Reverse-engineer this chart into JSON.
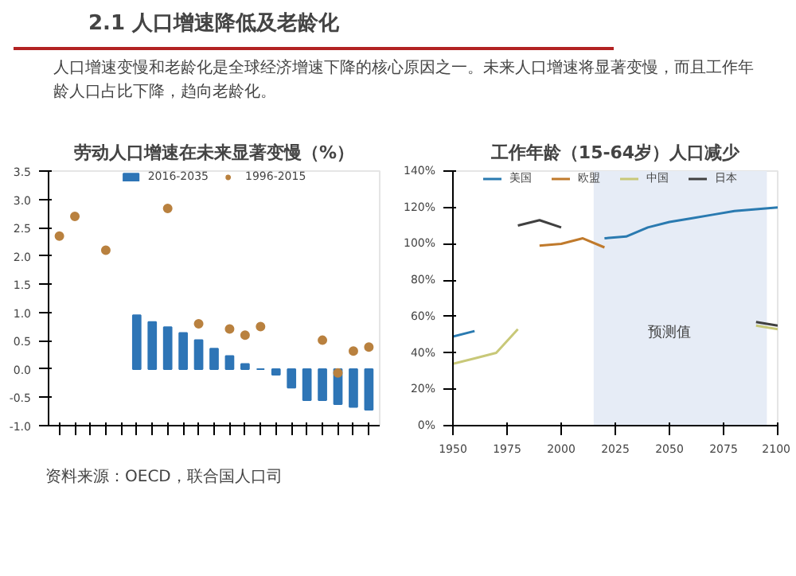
{
  "chart_data": [
    {
      "type": "other",
      "title": "2.1 人口增速降低及老龄化",
      "subtitle": "人口增速变慢和老龄化是全球经济增速下降的核心原因之一。未来人口增速将显著变慢，而且工作年龄人口占比下降，趋向老龄化。",
      "annotations": [
        "资料来源：OECD，联合国人口司"
      ]
    },
    {
      "type": "bar",
      "title": "劳动人口增速在未来显著变慢（%）",
      "categories": [
        null,
        null,
        null,
        null,
        null,
        null,
        null,
        null,
        null,
        null,
        null,
        null,
        null,
        null,
        null,
        null,
        null,
        null,
        null,
        null,
        null
      ],
      "series": [
        {
          "name": "2016-2035",
          "color": "#2e75b6",
          "values": [
            null,
            null,
            null,
            null,
            null,
            0.95,
            0.83,
            0.74,
            0.64,
            0.51,
            0.36,
            0.23,
            0.09,
            0.0,
            -0.1,
            -0.33,
            -0.55,
            -0.55,
            -0.62,
            -0.67,
            -0.72
          ]
        },
        {
          "name": "1996-2015",
          "type": "scatter",
          "marker": "circle",
          "color": "#b9813f",
          "values": [
            2.35,
            2.7,
            null,
            2.1,
            null,
            null,
            null,
            2.84,
            null,
            0.8,
            null,
            0.71,
            0.6,
            0.75,
            null,
            null,
            null,
            0.51,
            -0.07,
            0.32,
            0.39
          ]
        }
      ],
      "ylim": [
        -1.0,
        3.5
      ],
      "yticks": [
        {
          "value": -1.0,
          "label": "-1.0"
        },
        {
          "value": -0.5,
          "label": "-0.5"
        },
        {
          "value": 0,
          "label": "0.0"
        },
        {
          "value": 0.5,
          "label": "0.5"
        },
        {
          "value": 1.0,
          "label": "1.0"
        },
        {
          "value": 1.5,
          "label": "1.5"
        },
        {
          "value": 2.0,
          "label": "2.0"
        },
        {
          "value": 2.5,
          "label": "2.5"
        },
        {
          "value": 3.0,
          "label": "3.0"
        },
        {
          "value": 3.5,
          "label": "3.5"
        }
      ],
      "tick_labels": "y",
      "legend": "top",
      "grid": false
    },
    {
      "type": "line",
      "title": "工作年龄（15-64岁）人口减少",
      "x": [
        1950,
        1960,
        1970,
        1980,
        1990,
        2000,
        2010,
        2020,
        2030,
        2040,
        2050,
        2060,
        2070,
        2080,
        2090,
        2100
      ],
      "series": [
        {
          "name": "美国",
          "color": "#2a7ab0",
          "values": [
            49,
            52,
            null,
            null,
            null,
            null,
            null,
            103,
            104,
            109,
            112,
            114,
            116,
            118,
            119,
            120
          ]
        },
        {
          "name": "欧盟",
          "color": "#c07a2c",
          "values": [
            null,
            null,
            null,
            null,
            99,
            100,
            103,
            98,
            null,
            null,
            null,
            null,
            null,
            null,
            null,
            null
          ]
        },
        {
          "name": "中国",
          "color": "#c8c878",
          "values": [
            34,
            37,
            40,
            53,
            null,
            null,
            null,
            null,
            null,
            null,
            null,
            null,
            null,
            null,
            55,
            53
          ]
        },
        {
          "name": "日本",
          "color": "#404040",
          "values": [
            null,
            null,
            null,
            110,
            113,
            109,
            null,
            null,
            null,
            null,
            null,
            null,
            null,
            null,
            57,
            55
          ]
        }
      ],
      "xlim": [
        1950,
        2100
      ],
      "xticks": [
        1950,
        1975,
        2000,
        2025,
        2050,
        2075,
        2100
      ],
      "ylim": [
        0,
        140
      ],
      "yticks": [
        {
          "value": 0,
          "label": "0%"
        },
        {
          "value": 20,
          "label": "20%"
        },
        {
          "value": 40,
          "label": "40%"
        },
        {
          "value": 60,
          "label": "60%"
        },
        {
          "value": 80,
          "label": "80%"
        },
        {
          "value": 100,
          "label": "100%"
        },
        {
          "value": 120,
          "label": "120%"
        },
        {
          "value": 140,
          "label": "140%"
        }
      ],
      "bands": [
        {
          "axis": "x",
          "from": 2015,
          "to": 2095,
          "label": "预测值",
          "color": "#e6ecf6"
        }
      ],
      "legend": "top",
      "grid": false
    }
  ]
}
